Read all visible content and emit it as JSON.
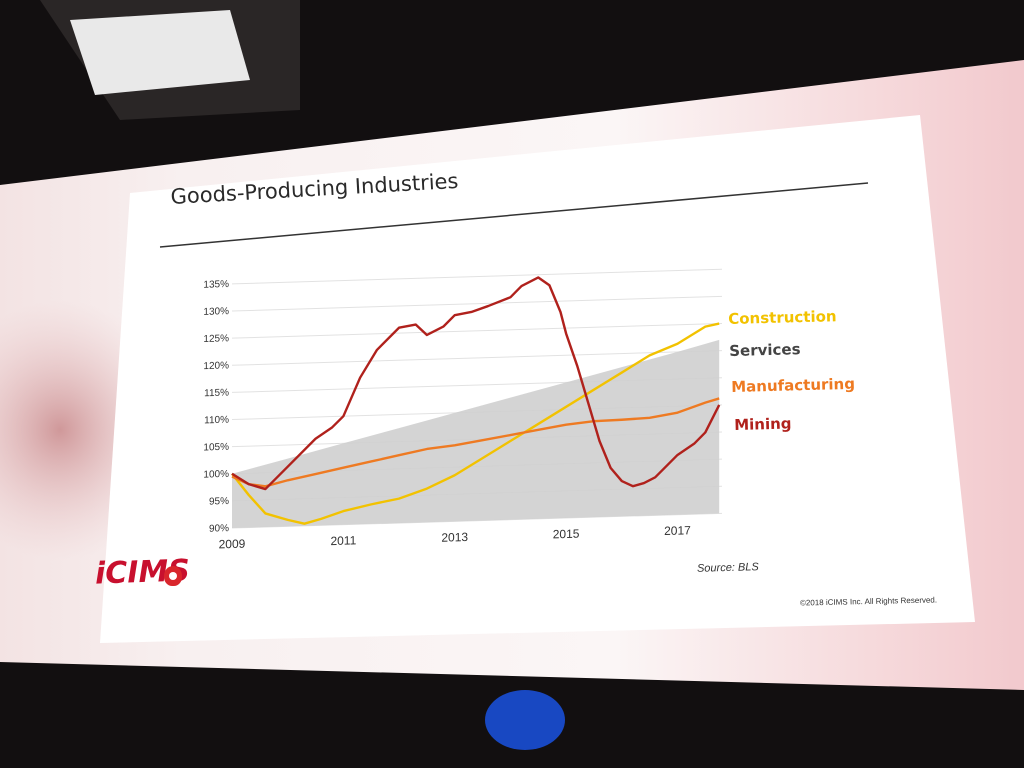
{
  "slide": {
    "title": "Goods-Producing Industries",
    "source": "Source: BLS",
    "copyright": "©2018 iCIMS Inc. All Rights Reserved.",
    "logo_text": "iCIMS"
  },
  "colors": {
    "Construction": "#f2c200",
    "Services": "#cfcfcf",
    "Manufacturing": "#ee7a22",
    "Mining": "#b0211c",
    "legend_services_text": "#444444"
  },
  "chart_data": {
    "type": "line",
    "title": "Goods-Producing Industries",
    "xlabel": "",
    "ylabel": "",
    "xlim": [
      2009,
      2017.8
    ],
    "ylim": [
      90,
      137
    ],
    "x_ticks": [
      "2009",
      "2011",
      "2013",
      "2015",
      "2017"
    ],
    "y_ticks": [
      "90%",
      "95%",
      "100%",
      "105%",
      "110%",
      "115%",
      "120%",
      "125%",
      "130%",
      "135%"
    ],
    "grid": true,
    "legend_position": "right",
    "series": [
      {
        "name": "Construction",
        "style": "line",
        "points": [
          [
            2009.0,
            100
          ],
          [
            2009.3,
            96
          ],
          [
            2009.6,
            92.5
          ],
          [
            2010.0,
            91.2
          ],
          [
            2010.3,
            90.4
          ],
          [
            2010.6,
            91.2
          ],
          [
            2011.0,
            92.5
          ],
          [
            2011.5,
            93.6
          ],
          [
            2012.0,
            94.5
          ],
          [
            2012.5,
            96.2
          ],
          [
            2013.0,
            98.5
          ],
          [
            2013.5,
            101.5
          ],
          [
            2014.0,
            104.5
          ],
          [
            2014.5,
            107.5
          ],
          [
            2015.0,
            110.5
          ],
          [
            2015.5,
            113.5
          ],
          [
            2016.0,
            116.5
          ],
          [
            2016.5,
            119.5
          ],
          [
            2017.0,
            121.5
          ],
          [
            2017.5,
            124.5
          ],
          [
            2017.75,
            125
          ]
        ]
      },
      {
        "name": "Services",
        "style": "area",
        "points": [
          [
            2009.0,
            100
          ],
          [
            2010.0,
            102.5
          ],
          [
            2011.0,
            105
          ],
          [
            2012.0,
            107.5
          ],
          [
            2013.0,
            110
          ],
          [
            2014.0,
            112.5
          ],
          [
            2015.0,
            115
          ],
          [
            2016.0,
            117.5
          ],
          [
            2017.0,
            120
          ],
          [
            2017.75,
            122
          ]
        ]
      },
      {
        "name": "Manufacturing",
        "style": "line",
        "points": [
          [
            2009.0,
            99.5
          ],
          [
            2009.3,
            98
          ],
          [
            2009.6,
            97.5
          ],
          [
            2010.0,
            98.5
          ],
          [
            2010.5,
            99.5
          ],
          [
            2011.0,
            100.5
          ],
          [
            2011.5,
            101.5
          ],
          [
            2012.0,
            102.5
          ],
          [
            2012.5,
            103.5
          ],
          [
            2013.0,
            104
          ],
          [
            2013.5,
            104.8
          ],
          [
            2014.0,
            105.6
          ],
          [
            2014.5,
            106.4
          ],
          [
            2015.0,
            107.2
          ],
          [
            2015.5,
            107.7
          ],
          [
            2016.0,
            107.8
          ],
          [
            2016.5,
            108
          ],
          [
            2017.0,
            108.8
          ],
          [
            2017.5,
            110.5
          ],
          [
            2017.75,
            111.2
          ]
        ]
      },
      {
        "name": "Mining",
        "style": "line",
        "points": [
          [
            2009.0,
            100
          ],
          [
            2009.3,
            98
          ],
          [
            2009.6,
            97
          ],
          [
            2010.0,
            101
          ],
          [
            2010.5,
            106
          ],
          [
            2010.8,
            108
          ],
          [
            2011.0,
            110
          ],
          [
            2011.3,
            117
          ],
          [
            2011.6,
            122
          ],
          [
            2012.0,
            126
          ],
          [
            2012.3,
            126.5
          ],
          [
            2012.5,
            124.5
          ],
          [
            2012.8,
            126
          ],
          [
            2013.0,
            128
          ],
          [
            2013.3,
            128.5
          ],
          [
            2013.6,
            129.5
          ],
          [
            2014.0,
            131
          ],
          [
            2014.2,
            133
          ],
          [
            2014.5,
            134.5
          ],
          [
            2014.7,
            133
          ],
          [
            2014.9,
            128
          ],
          [
            2015.0,
            124
          ],
          [
            2015.2,
            118
          ],
          [
            2015.4,
            111
          ],
          [
            2015.6,
            104
          ],
          [
            2015.8,
            99
          ],
          [
            2016.0,
            96.5
          ],
          [
            2016.2,
            95.5
          ],
          [
            2016.4,
            96
          ],
          [
            2016.6,
            97
          ],
          [
            2016.8,
            99
          ],
          [
            2017.0,
            101
          ],
          [
            2017.3,
            103
          ],
          [
            2017.5,
            105
          ],
          [
            2017.75,
            110
          ]
        ]
      }
    ]
  }
}
